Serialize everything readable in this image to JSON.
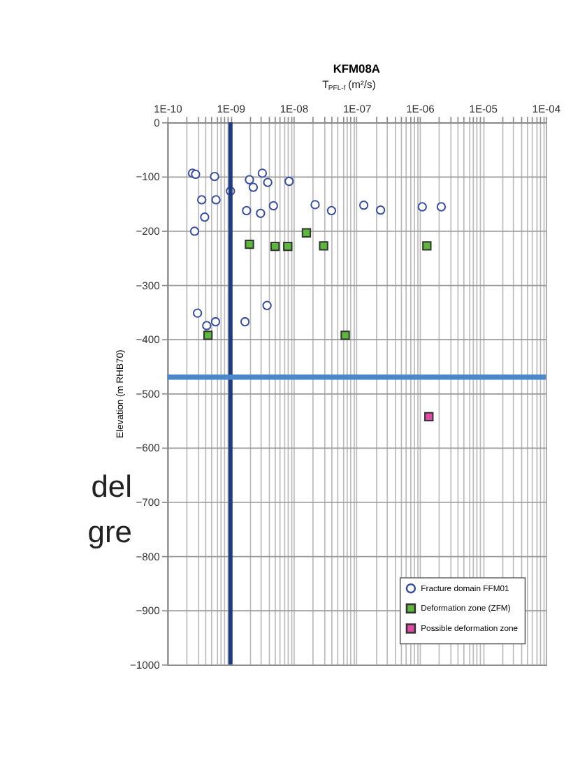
{
  "chart_data": {
    "type": "scatter",
    "title": "KFM08A",
    "xlabel": "T$_{PFL-f}$ (m²/s)",
    "ylabel": "Elevation (m RHB70)",
    "log": "x",
    "xlim": [
      1e-10,
      0.0001
    ],
    "ylim": [
      -1000,
      0
    ],
    "xticks": [
      {
        "value": 1e-10,
        "label": "1E-10"
      },
      {
        "value": 1e-09,
        "label": "1E-09"
      },
      {
        "value": 1e-08,
        "label": "1E-08"
      },
      {
        "value": 1e-07,
        "label": "1E-07"
      },
      {
        "value": 1e-06,
        "label": "1E-06"
      },
      {
        "value": 1e-05,
        "label": "1E-05"
      },
      {
        "value": 0.0001,
        "label": "1E-04"
      }
    ],
    "yticks": [
      0,
      -100,
      -200,
      -300,
      -400,
      -500,
      -600,
      -700,
      -800,
      -900,
      -1000
    ],
    "grid": true,
    "legend": "bottom right",
    "series": [
      {
        "name": "Fracture domain FFM01",
        "color": "#3a4fa0",
        "marker": "circle",
        "x": [
          2.5e-10,
          2.8e-10,
          5.6e-10,
          1e-09,
          2e-09,
          2.3e-09,
          3.2e-09,
          3.9e-09,
          8.5e-09,
          3.5e-10,
          5.9e-10,
          3.9e-10,
          2.7e-10,
          1.8e-09,
          3e-09,
          4.8e-09,
          2.2e-08,
          4e-08,
          1.3e-07,
          2.4e-07,
          1.1e-06,
          2.2e-06,
          3.8e-09,
          3e-10,
          4.2e-10,
          5.8e-10,
          1.7e-09
        ],
        "values": [
          -94,
          -96,
          -100,
          -127,
          -106,
          -120,
          -94,
          -111,
          -109,
          -143,
          -143,
          -175,
          -201,
          -163,
          -168,
          -154,
          -152,
          -163,
          -153,
          -162,
          -156,
          -156,
          -338,
          -352,
          -375,
          -368,
          -368
        ]
      },
      {
        "name": "Deformation zone (ZFM)",
        "color": "#5cb83c",
        "marker": "square",
        "x": [
          2e-09,
          5.1e-09,
          8.1e-09,
          1.6e-08,
          3e-08,
          1.3e-06,
          4.4e-10,
          6.6e-08
        ],
        "values": [
          -225,
          -229,
          -229,
          -204,
          -228,
          -228,
          -393,
          -393
        ]
      },
      {
        "name": "Possible deformation zone",
        "color": "#e34aa6",
        "marker": "square",
        "x": [
          1.4e-06
        ],
        "values": [
          -543
        ]
      }
    ],
    "ref_lines": [
      {
        "axis": "x",
        "value": 1e-09,
        "color": "#1f3a80"
      },
      {
        "axis": "y",
        "value": -470,
        "color": "#4a86c8"
      }
    ],
    "annotations": [
      "del",
      "gre"
    ]
  }
}
